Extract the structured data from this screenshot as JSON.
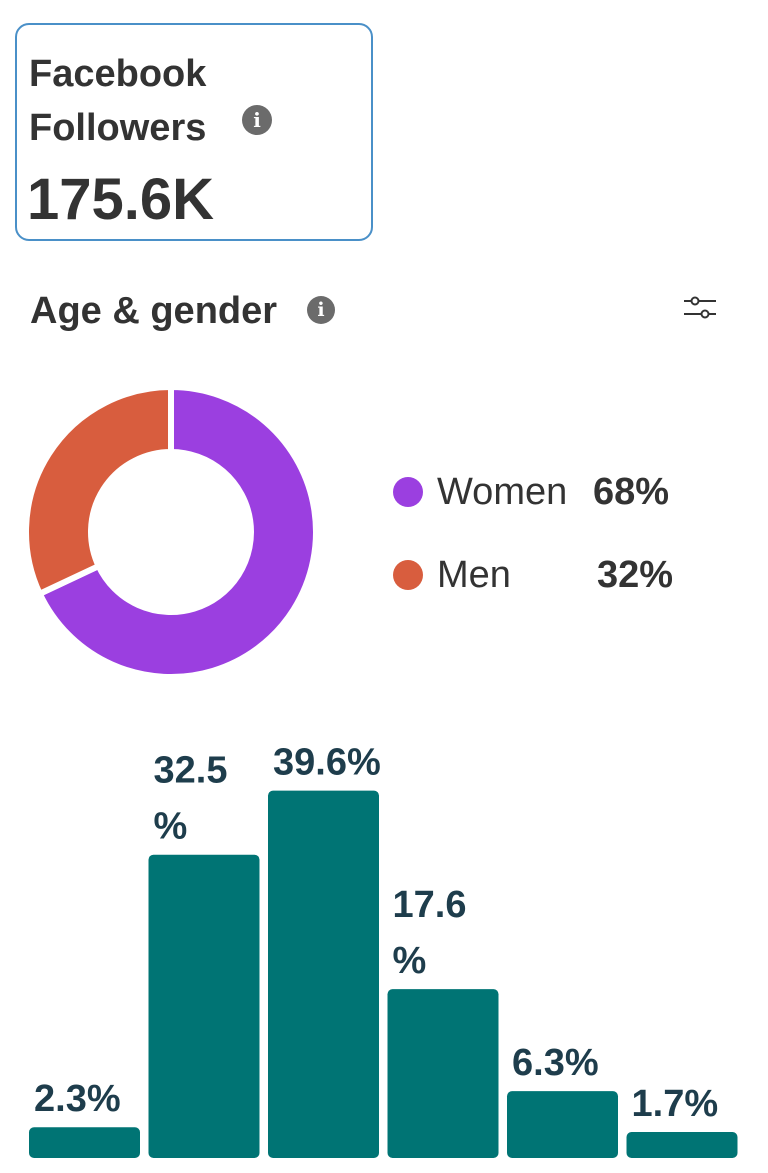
{
  "followers": {
    "title": "Facebook Followers",
    "value": "175.6K",
    "info_icon": "info-icon"
  },
  "section": {
    "title": "Age & gender",
    "info_icon": "info-icon",
    "filter_icon": "sliders-icon"
  },
  "gender": {
    "legend": [
      {
        "label": "Women",
        "value": "68%",
        "color": "#9b3fe0"
      },
      {
        "label": "Men",
        "value": "32%",
        "color": "#d85d3e"
      }
    ]
  },
  "colors": {
    "accent_border": "#4a90c8",
    "bar": "#007474",
    "bar_label": "#1e3d4c"
  },
  "chart_data": [
    {
      "type": "pie",
      "categories": [
        "Women",
        "Men"
      ],
      "values": [
        68,
        32
      ],
      "colors": [
        "#9b3fe0",
        "#d85d3e"
      ]
    },
    {
      "type": "bar",
      "values": [
        2.3,
        32.5,
        39.6,
        17.6,
        6.3,
        1.7
      ],
      "labels": [
        [
          "2.3%"
        ],
        [
          "32.5",
          "%"
        ],
        [
          "39.6%"
        ],
        [
          "17.6",
          "%"
        ],
        [
          "6.3%"
        ],
        [
          "1.7%"
        ]
      ],
      "color": "#007474"
    }
  ]
}
